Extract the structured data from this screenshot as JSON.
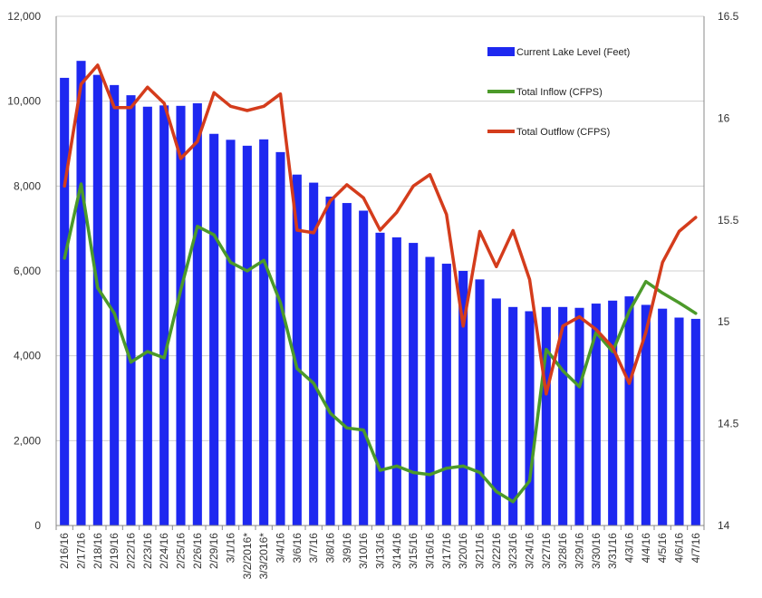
{
  "chart_data": {
    "type": "bar+line",
    "grid": true,
    "legend_position": "top-right",
    "categories": [
      "2/16/16",
      "2/17/16",
      "2/18/16",
      "2/19/16",
      "2/22/16",
      "2/23/16",
      "2/24/16",
      "2/25/16",
      "2/26/16",
      "2/29/16",
      "3/1/16",
      "3/2/2016*",
      "3/3/2016*",
      "3/4/16",
      "3/6/16",
      "3/7/16",
      "3/8/16",
      "3/9/16",
      "3/10/16",
      "3/13/16",
      "3/14/16",
      "3/15/16",
      "3/16/16",
      "3/17/16",
      "3/20/16",
      "3/21/16",
      "3/22/16",
      "3/23/16",
      "3/24/16",
      "3/27/16",
      "3/28/16",
      "3/29/16",
      "3/30/16",
      "3/31/16",
      "4/3/16",
      "4/4/16",
      "4/5/16",
      "4/6/16",
      "4/7/16"
    ],
    "y_left": {
      "min": 0,
      "max": 12000,
      "ticks": [
        "0",
        "2,000",
        "4,000",
        "6,000",
        "8,000",
        "10,000",
        "12,000"
      ]
    },
    "y_right": {
      "min": 14,
      "max": 16.5,
      "ticks": [
        "14",
        "14.5",
        "15",
        "15.5",
        "16",
        "16.5"
      ]
    },
    "series": [
      {
        "name": "Current Lake Level (Feet)",
        "type": "bar",
        "axis": "left",
        "color": "#1e28f0",
        "values": [
          10550,
          10950,
          10620,
          10380,
          10140,
          9870,
          9900,
          9890,
          9950,
          9230,
          9090,
          8950,
          9100,
          8800,
          8270,
          8080,
          7750,
          7600,
          7420,
          6900,
          6790,
          6660,
          6330,
          6170,
          6000,
          5800,
          5350,
          5150,
          5050,
          5150,
          5150,
          5130,
          5230,
          5300,
          5400,
          5200,
          5110,
          4900,
          4870
        ]
      },
      {
        "name": "Total Inflow (CFPS)",
        "type": "line",
        "axis": "left",
        "color": "#4c9a2a",
        "values": [
          6300,
          8050,
          5600,
          5000,
          3850,
          4100,
          3950,
          5550,
          7050,
          6850,
          6200,
          6000,
          6250,
          5250,
          3700,
          3350,
          2650,
          2300,
          2250,
          1300,
          1400,
          1250,
          1200,
          1350,
          1400,
          1250,
          800,
          560,
          1050,
          4150,
          3650,
          3270,
          4550,
          4100,
          5050,
          5750,
          5480,
          5250,
          5000
        ]
      },
      {
        "name": "Total Outflow (CFPS)",
        "type": "line",
        "axis": "left",
        "color": "#d43c1c",
        "values": [
          8000,
          10400,
          10850,
          9850,
          9850,
          10330,
          9950,
          8650,
          9050,
          10200,
          9880,
          9780,
          9880,
          10170,
          6960,
          6900,
          7650,
          8030,
          7720,
          6960,
          7380,
          8000,
          8270,
          7330,
          4700,
          6930,
          6100,
          6950,
          5800,
          3100,
          4700,
          4920,
          4620,
          4200,
          3350,
          4550,
          6200,
          6930,
          7260
        ]
      }
    ]
  }
}
